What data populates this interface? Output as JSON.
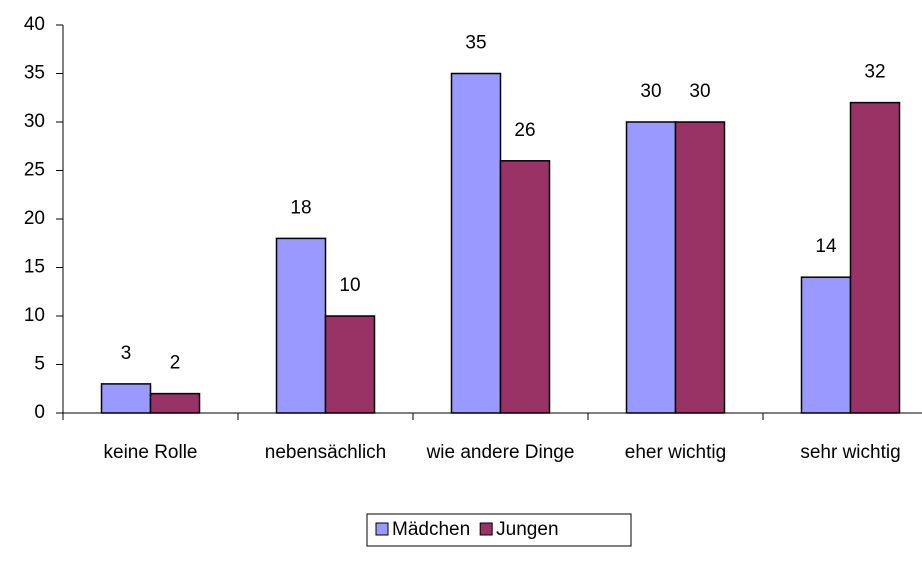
{
  "chart_data": {
    "type": "bar",
    "categories": [
      "keine Rolle",
      "nebensächlich",
      "wie andere Dinge",
      "eher wichtig",
      "sehr wichtig"
    ],
    "series": [
      {
        "name": "Mädchen",
        "color": "#9999ff",
        "values": [
          3,
          18,
          35,
          30,
          14
        ]
      },
      {
        "name": "Jungen",
        "color": "#993366",
        "values": [
          2,
          10,
          26,
          30,
          32
        ]
      }
    ],
    "ylim": [
      0,
      40
    ],
    "yticks": [
      0,
      5,
      10,
      15,
      20,
      25,
      30,
      35,
      40
    ],
    "grid": false,
    "legend": "bottom"
  }
}
